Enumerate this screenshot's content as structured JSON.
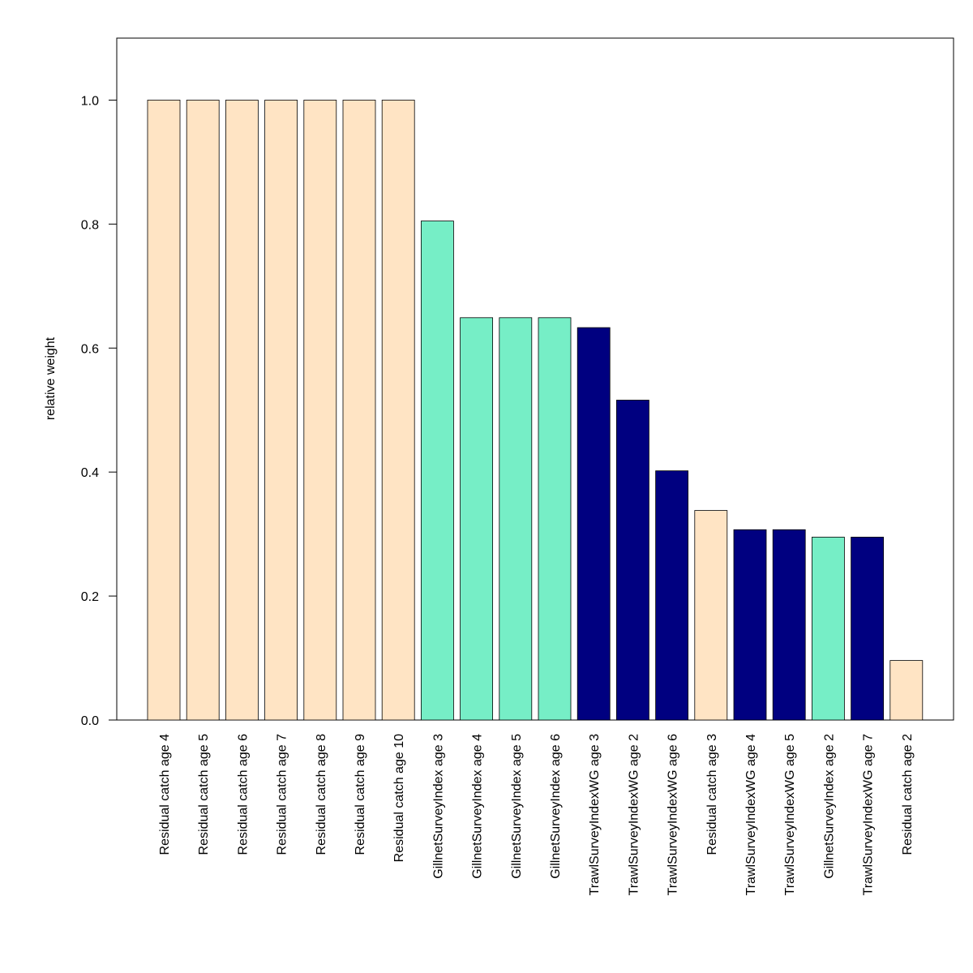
{
  "chart_data": {
    "type": "bar",
    "title": "",
    "xlabel": "",
    "ylabel": "relative weight",
    "ylim": [
      0,
      1.1
    ],
    "yticks": [
      0.0,
      0.2,
      0.4,
      0.6,
      0.8,
      1.0
    ],
    "ytick_labels": [
      "0.0",
      "0.2",
      "0.4",
      "0.6",
      "0.8",
      "1.0"
    ],
    "grid": false,
    "colors": {
      "Residual catch": "#FFE4C4",
      "GillnetSurveyIndex": "#76EEC6",
      "TrawlSurveyIndexWG": "#000080"
    },
    "categories": [
      "Residual catch age 4",
      "Residual catch age 5",
      "Residual catch age 6",
      "Residual catch age 7",
      "Residual catch age 8",
      "Residual catch age 9",
      "Residual catch age 10",
      "GillnetSurveyIndex age 3",
      "GillnetSurveyIndex age 4",
      "GillnetSurveyIndex age 5",
      "GillnetSurveyIndex age 6",
      "TrawlSurveyIndexWG age 3",
      "TrawlSurveyIndexWG age 2",
      "TrawlSurveyIndexWG age 6",
      "Residual catch age 3",
      "TrawlSurveyIndexWG age 4",
      "TrawlSurveyIndexWG age 5",
      "GillnetSurveyIndex age 2",
      "TrawlSurveyIndexWG age 7",
      "Residual catch age 2"
    ],
    "values": [
      1.0,
      1.0,
      1.0,
      1.0,
      1.0,
      1.0,
      1.0,
      0.805,
      0.649,
      0.649,
      0.649,
      0.633,
      0.516,
      0.402,
      0.338,
      0.307,
      0.307,
      0.295,
      0.295,
      0.096
    ],
    "bar_colors": [
      "#FFE4C4",
      "#FFE4C4",
      "#FFE4C4",
      "#FFE4C4",
      "#FFE4C4",
      "#FFE4C4",
      "#FFE4C4",
      "#76EEC6",
      "#76EEC6",
      "#76EEC6",
      "#76EEC6",
      "#000080",
      "#000080",
      "#000080",
      "#FFE4C4",
      "#000080",
      "#000080",
      "#76EEC6",
      "#000080",
      "#FFE4C4"
    ]
  }
}
